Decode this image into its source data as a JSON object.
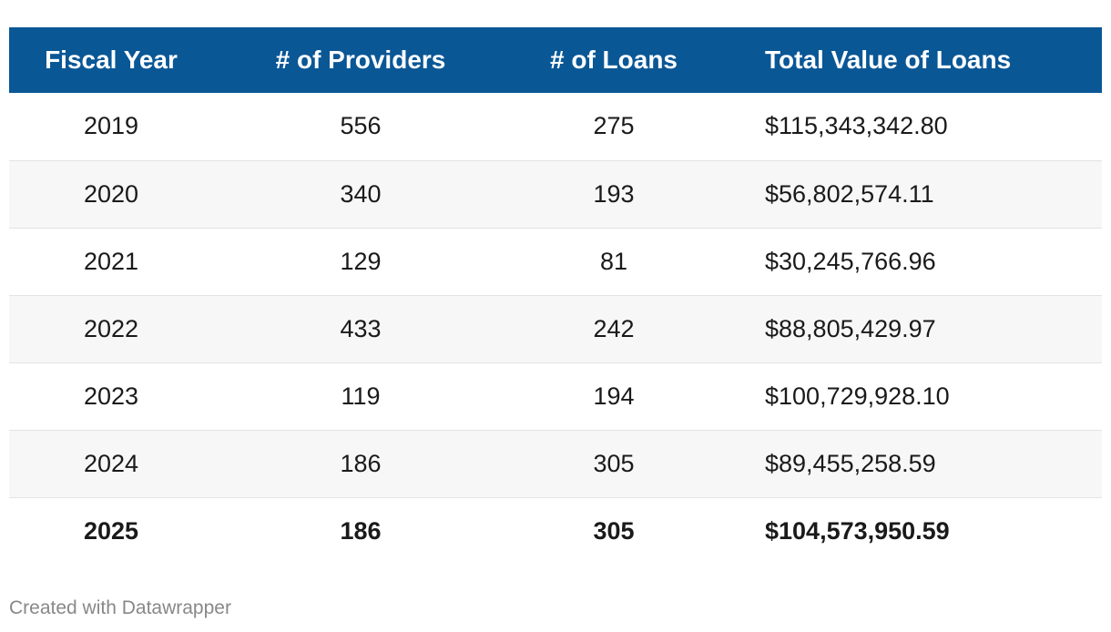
{
  "chart_data": {
    "type": "table",
    "columns": [
      "Fiscal Year",
      "# of Providers",
      "# of Loans",
      "Total Value of Loans"
    ],
    "rows": [
      {
        "year": "2019",
        "providers": "556",
        "loans": "275",
        "value": "$115,343,342.80"
      },
      {
        "year": "2020",
        "providers": "340",
        "loans": "193",
        "value": "$56,802,574.11"
      },
      {
        "year": "2021",
        "providers": "129",
        "loans": "81",
        "value": "$30,245,766.96"
      },
      {
        "year": "2022",
        "providers": "433",
        "loans": "242",
        "value": "$88,805,429.97"
      },
      {
        "year": "2023",
        "providers": "119",
        "loans": "194",
        "value": "$100,729,928.10"
      },
      {
        "year": "2024",
        "providers": "186",
        "loans": "305",
        "value": "$89,455,258.59"
      },
      {
        "year": "2025",
        "providers": "186",
        "loans": "305",
        "value": "$104,573,950.59"
      }
    ],
    "header_color": "#0a5796",
    "stripe_color": "#f7f7f7"
  },
  "footer": {
    "credit": "Created with Datawrapper"
  }
}
